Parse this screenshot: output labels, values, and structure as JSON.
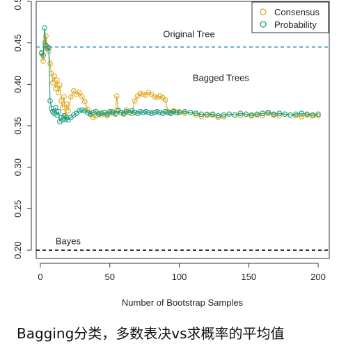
{
  "chart_data": {
    "type": "line",
    "xlabel": "Number of Bootstrap Samples",
    "ylabel": "",
    "xlim": [
      -3,
      208
    ],
    "ylim": [
      0.19,
      0.5
    ],
    "xticks": [
      0,
      50,
      100,
      150,
      200
    ],
    "xtick_labels": [
      "0",
      "50",
      "100",
      "150",
      "200"
    ],
    "yticks": [
      0.2,
      0.25,
      0.3,
      0.35,
      0.4,
      0.45,
      0.5
    ],
    "ytick_labels": [
      "0.20",
      "0.25",
      "0.30",
      "0.35",
      "0.40",
      "0.45",
      "0.50"
    ],
    "legend_position": "top-right",
    "series": [
      {
        "name": "Consensus",
        "color": "#e0a81c",
        "marker": "open-circle",
        "x": [
          1,
          2,
          3,
          4,
          5,
          6,
          7,
          8,
          9,
          10,
          11,
          12,
          13,
          14,
          15,
          16,
          17,
          18,
          19,
          20,
          22,
          24,
          26,
          28,
          30,
          32,
          34,
          36,
          38,
          40,
          42,
          44,
          46,
          48,
          50,
          52,
          54,
          55,
          56,
          58,
          60,
          62,
          64,
          66,
          68,
          70,
          72,
          74,
          76,
          78,
          80,
          82,
          84,
          86,
          88,
          90,
          92,
          94,
          96,
          98,
          100,
          104,
          108,
          112,
          116,
          120,
          124,
          128,
          132,
          136,
          140,
          144,
          148,
          152,
          156,
          160,
          164,
          168,
          172,
          176,
          180,
          184,
          188,
          192,
          196,
          200
        ],
        "values": [
          0.437,
          0.428,
          0.45,
          0.458,
          0.445,
          0.44,
          0.425,
          0.413,
          0.402,
          0.41,
          0.395,
          0.405,
          0.39,
          0.399,
          0.38,
          0.372,
          0.385,
          0.362,
          0.376,
          0.368,
          0.385,
          0.392,
          0.388,
          0.39,
          0.385,
          0.379,
          0.37,
          0.365,
          0.36,
          0.362,
          0.365,
          0.363,
          0.366,
          0.362,
          0.365,
          0.367,
          0.364,
          0.386,
          0.369,
          0.366,
          0.364,
          0.369,
          0.366,
          0.365,
          0.38,
          0.386,
          0.389,
          0.388,
          0.387,
          0.39,
          0.388,
          0.385,
          0.384,
          0.386,
          0.384,
          0.381,
          0.367,
          0.366,
          0.368,
          0.366,
          0.367,
          0.365,
          0.366,
          0.363,
          0.361,
          0.364,
          0.363,
          0.36,
          0.361,
          0.364,
          0.363,
          0.362,
          0.364,
          0.362,
          0.363,
          0.362,
          0.365,
          0.363,
          0.362,
          0.364,
          0.363,
          0.362,
          0.361,
          0.363,
          0.362,
          0.362
        ]
      },
      {
        "name": "Probability",
        "color": "#1a9e80",
        "marker": "open-circle",
        "x": [
          1,
          2,
          3,
          4,
          5,
          6,
          7,
          8,
          9,
          10,
          11,
          12,
          13,
          14,
          15,
          16,
          17,
          18,
          19,
          20,
          22,
          24,
          26,
          28,
          30,
          32,
          34,
          36,
          38,
          40,
          42,
          44,
          46,
          48,
          50,
          52,
          54,
          56,
          58,
          60,
          62,
          64,
          66,
          68,
          70,
          72,
          74,
          76,
          78,
          80,
          82,
          84,
          86,
          88,
          90,
          92,
          94,
          96,
          98,
          100,
          104,
          108,
          112,
          116,
          120,
          124,
          128,
          132,
          136,
          140,
          144,
          148,
          152,
          156,
          160,
          164,
          168,
          172,
          176,
          180,
          184,
          188,
          192,
          196,
          200
        ],
        "values": [
          0.438,
          0.435,
          0.468,
          0.447,
          0.443,
          0.444,
          0.38,
          0.371,
          0.367,
          0.365,
          0.372,
          0.363,
          0.367,
          0.355,
          0.36,
          0.357,
          0.362,
          0.358,
          0.36,
          0.357,
          0.36,
          0.363,
          0.365,
          0.368,
          0.369,
          0.368,
          0.366,
          0.364,
          0.366,
          0.367,
          0.364,
          0.365,
          0.366,
          0.364,
          0.367,
          0.366,
          0.365,
          0.368,
          0.366,
          0.365,
          0.367,
          0.366,
          0.368,
          0.366,
          0.365,
          0.367,
          0.366,
          0.367,
          0.366,
          0.365,
          0.366,
          0.367,
          0.366,
          0.365,
          0.367,
          0.366,
          0.365,
          0.367,
          0.366,
          0.366,
          0.367,
          0.366,
          0.365,
          0.364,
          0.363,
          0.364,
          0.362,
          0.363,
          0.364,
          0.363,
          0.365,
          0.364,
          0.363,
          0.364,
          0.365,
          0.366,
          0.364,
          0.365,
          0.364,
          0.363,
          0.364,
          0.365,
          0.364,
          0.363,
          0.364
        ]
      }
    ],
    "reference_lines": [
      {
        "label": "Original Tree",
        "value": 0.445,
        "color": "#2b8cc4",
        "style": "dashed"
      },
      {
        "label": "Bayes",
        "value": 0.2,
        "color": "#111111",
        "style": "dashed"
      }
    ],
    "annotations": [
      {
        "text": "Original Tree",
        "x": 107,
        "y": 0.457
      },
      {
        "text": "Bagged Trees",
        "x": 130,
        "y": 0.404
      },
      {
        "text": "Bayes",
        "x": 20,
        "y": 0.207
      }
    ]
  },
  "caption": "Bagging分类，多数表决vs求概率的平均值"
}
